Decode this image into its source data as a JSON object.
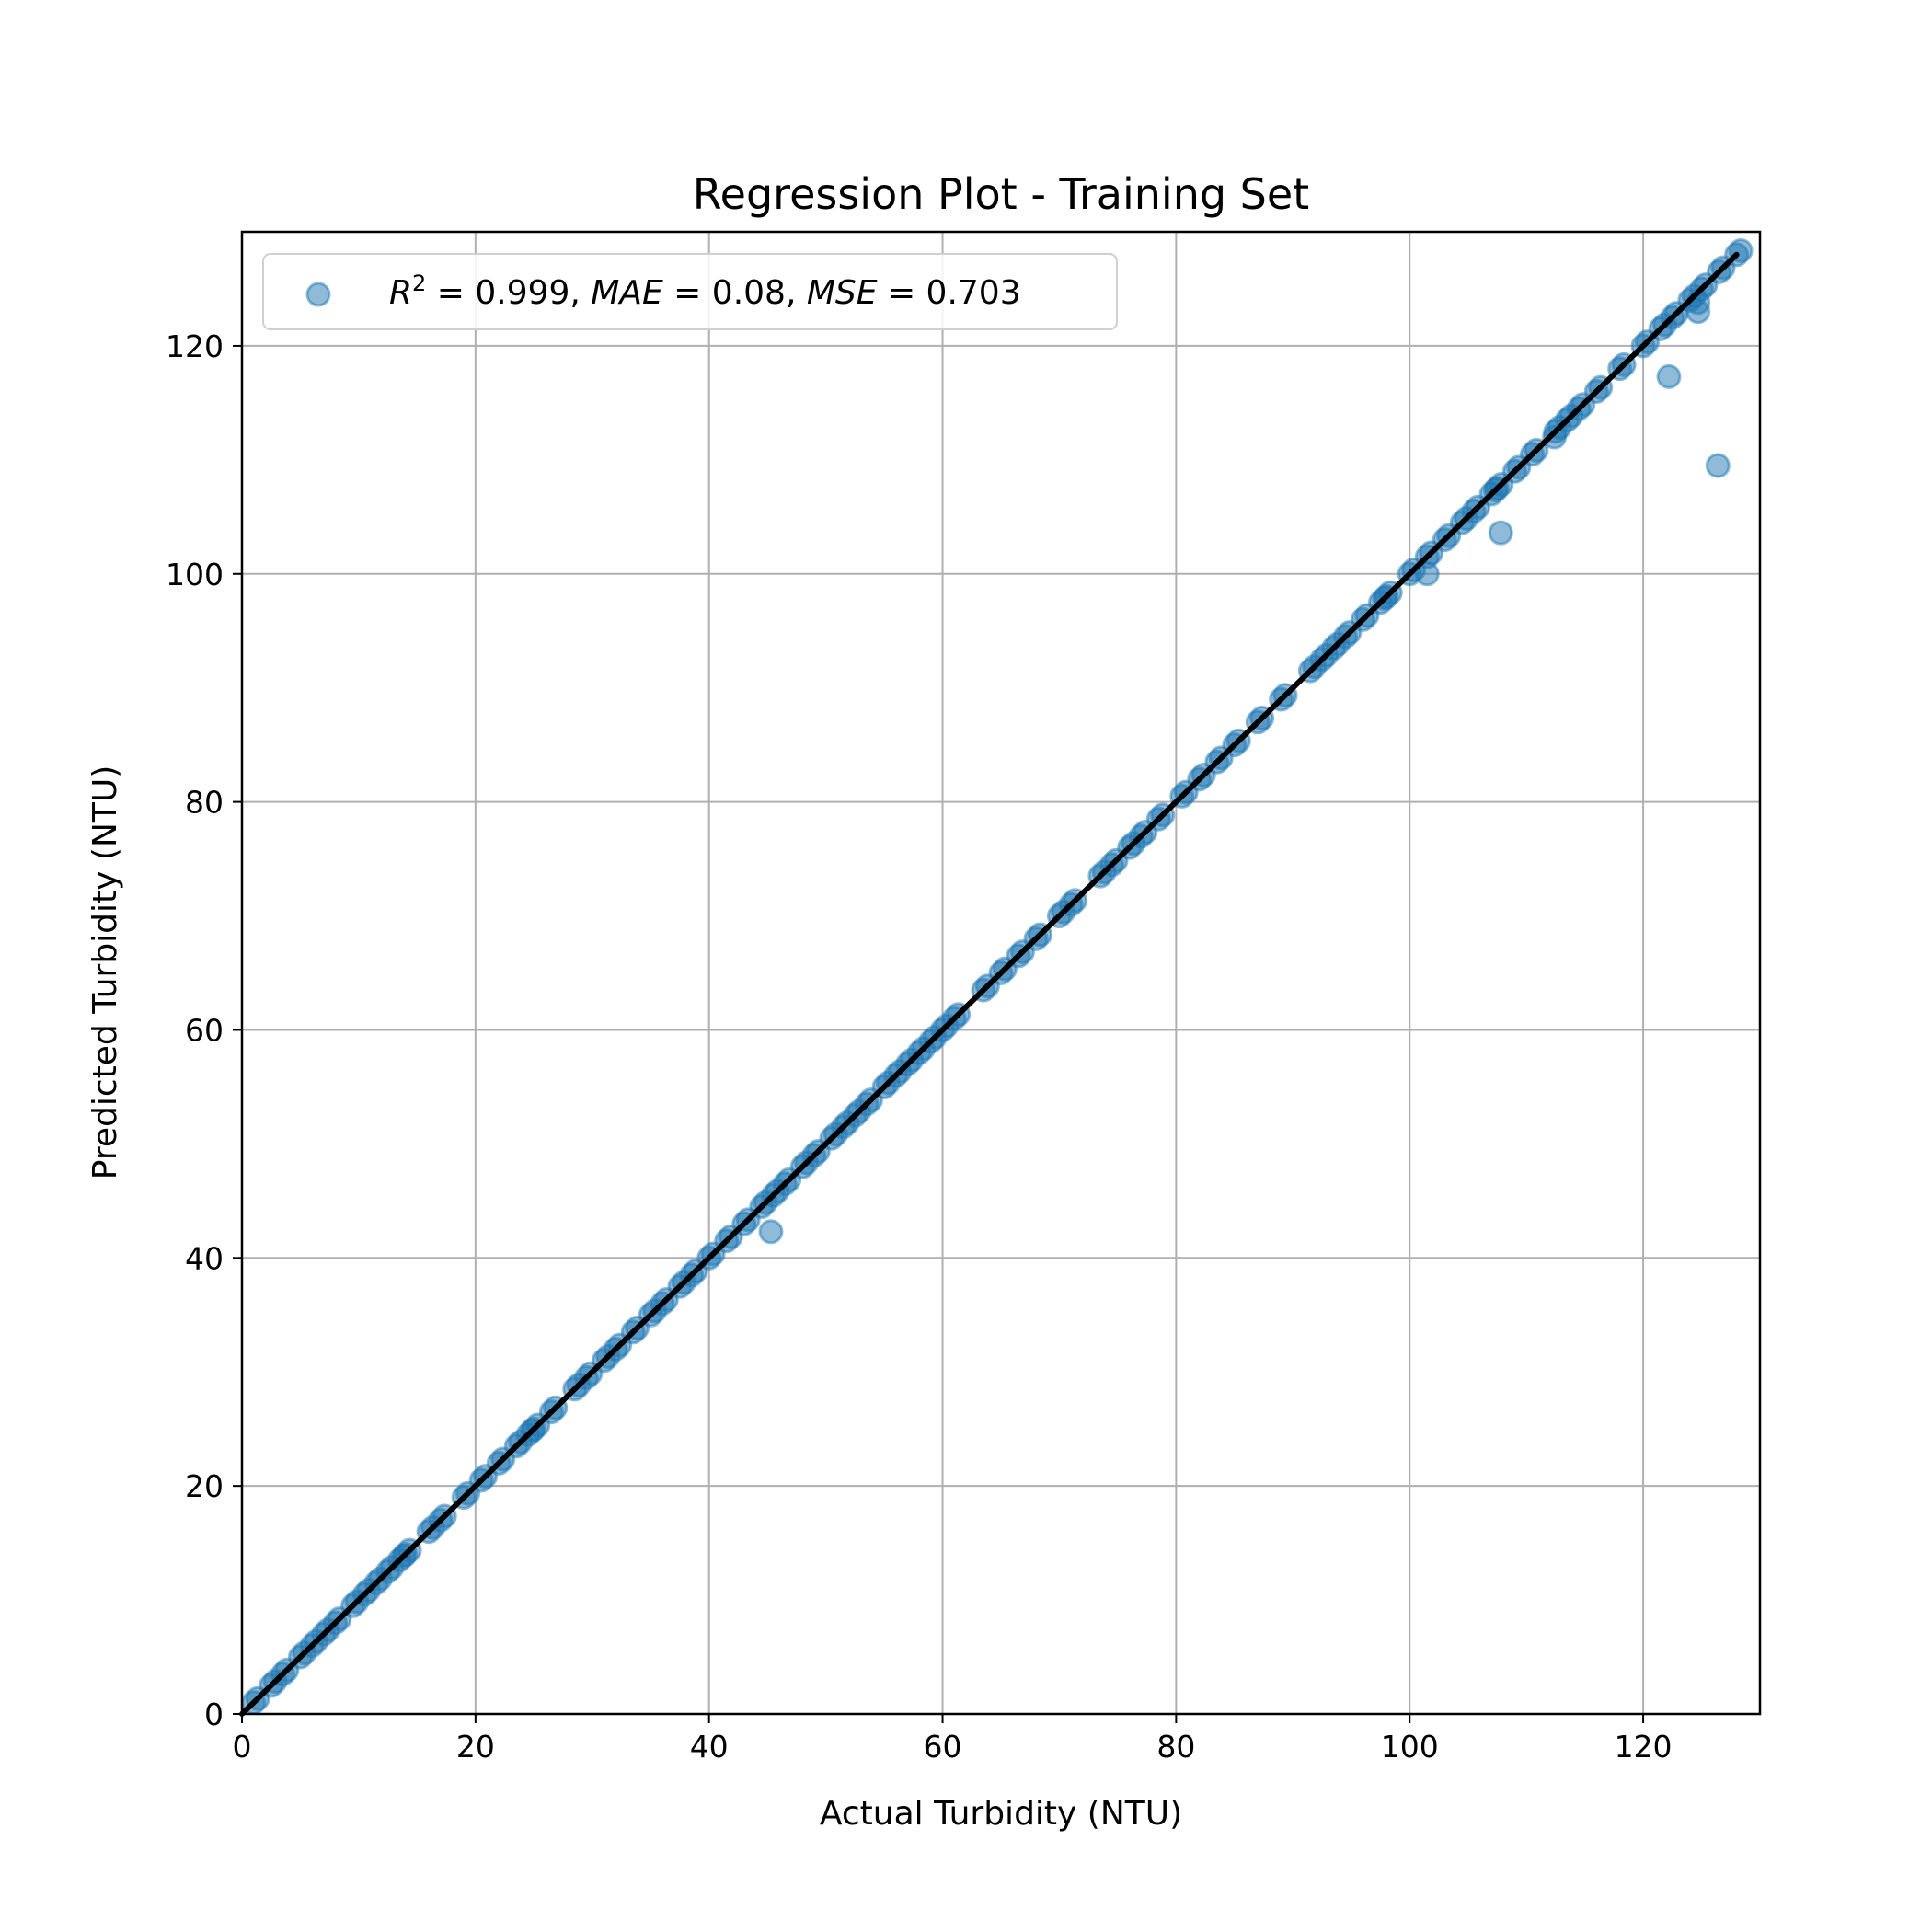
{
  "chart_data": {
    "type": "scatter",
    "title": "Regression Plot - Training Set",
    "xlabel": "Actual Turbidity (NTU)",
    "ylabel": "Predicted Turbidity (NTU)",
    "xlim": [
      0,
      130
    ],
    "ylim": [
      0,
      130
    ],
    "xticks": [
      0,
      20,
      40,
      60,
      80,
      100,
      120
    ],
    "yticks": [
      0,
      20,
      40,
      60,
      80,
      100,
      120
    ],
    "grid": true,
    "legend_position": "upper-left",
    "legend": {
      "r2_symbol": "R",
      "r2_exp": "2",
      "r2_value": " = 0.999, ",
      "mae_symbol": "MAE",
      "mae_value": " = 0.08, ",
      "mse_symbol": "MSE",
      "mse_value": " = 0.703"
    },
    "metrics": {
      "R2": 0.999,
      "MAE": 0.08,
      "MSE": 0.703
    },
    "point_color": "#1f77b4",
    "line_color": "#000000",
    "fit_line": {
      "x": [
        0,
        128
      ],
      "y": [
        0,
        128
      ]
    },
    "identity_points": [
      1,
      2.5,
      3.5,
      5,
      6,
      7,
      8,
      9.5,
      10.5,
      11.5,
      12.5,
      13.5,
      14,
      16,
      17,
      19,
      20.5,
      22,
      23.5,
      24.5,
      25,
      26.5,
      28.5,
      29.5,
      31,
      32,
      33.5,
      35,
      36,
      37.5,
      38.5,
      40,
      41.5,
      43,
      44.5,
      45.5,
      46.5,
      48,
      49,
      50.5,
      51.5,
      52.5,
      53.5,
      55,
      56,
      57,
      58,
      59,
      60,
      61,
      63.5,
      65,
      66.5,
      68,
      70,
      71,
      73.5,
      74.5,
      76,
      77,
      78.5,
      80.5,
      82,
      83.5,
      85,
      87,
      89,
      91.5,
      92.5,
      93.5,
      94.5,
      96,
      97.5,
      98,
      100,
      101.5,
      103,
      104.5,
      105.5,
      107,
      107.5,
      109,
      110.5,
      112.5,
      113.5,
      114.5,
      116,
      118,
      120,
      121.5,
      122.5,
      124,
      125,
      126.5,
      128
    ],
    "outliers": [
      {
        "x": 45.3,
        "y": 42.3
      },
      {
        "x": 101.5,
        "y": 100
      },
      {
        "x": 107.8,
        "y": 103.6
      },
      {
        "x": 112.4,
        "y": 112
      },
      {
        "x": 122.2,
        "y": 117.3
      },
      {
        "x": 124.7,
        "y": 123
      },
      {
        "x": 124.7,
        "y": 123.8
      },
      {
        "x": 126.4,
        "y": 109.5
      }
    ]
  }
}
